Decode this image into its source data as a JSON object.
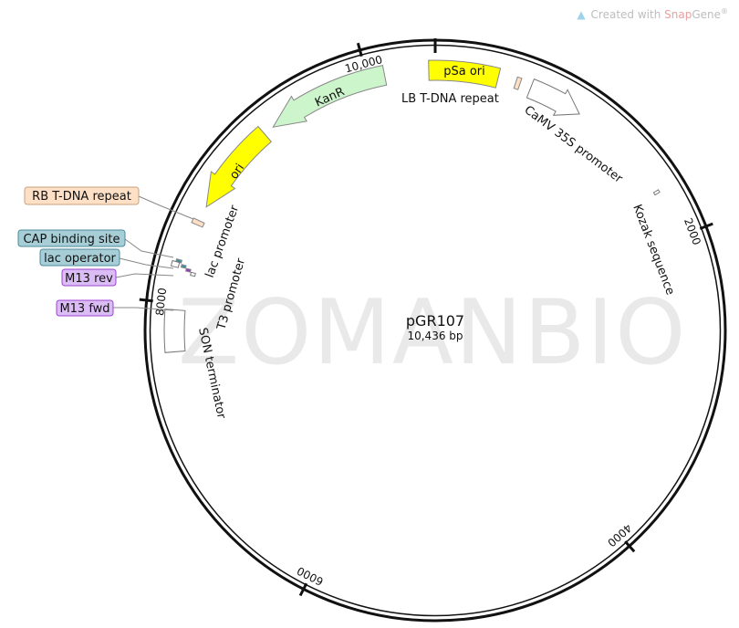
{
  "plasmid": {
    "name": "pGR107",
    "length_label": "10,436 bp",
    "length_bp": 10436
  },
  "watermark": "ZOMANBIO",
  "branding": {
    "prefix": "Created with ",
    "snap": "Snap",
    "gene": "Gene",
    "reg": "®"
  },
  "ticks": [
    {
      "bp": 2000,
      "label": "2000"
    },
    {
      "bp": 4000,
      "label": "4000"
    },
    {
      "bp": 6000,
      "label": "6000"
    },
    {
      "bp": 8000,
      "label": "8000"
    },
    {
      "bp": 10000,
      "label": "10,000"
    }
  ],
  "features": [
    {
      "name": "pSa ori",
      "start": 10395,
      "end": 406,
      "direction": "none",
      "color": "#ffff00"
    },
    {
      "name": "LB T-DNA repeat",
      "start": 522,
      "end": 550,
      "direction": "none",
      "color": "#fde0c5"
    },
    {
      "name": "CaMV 35S promoter",
      "start": 623,
      "end": 977,
      "direction": "forward",
      "color": "#ffffff"
    },
    {
      "name": "Kozak sequence",
      "start": 1675,
      "end": 1685,
      "direction": "none",
      "color": "#ffffff"
    },
    {
      "name": "KanR",
      "start": 9318,
      "end": 10111,
      "direction": "reverse",
      "color": "#ccf5cc"
    },
    {
      "name": "ori",
      "start": 8648,
      "end": 9248,
      "direction": "reverse",
      "color": "#ffff00"
    },
    {
      "name": "RB T-DNA repeat",
      "start": 8520,
      "end": 8550,
      "direction": "none",
      "color": "#fde0c5"
    },
    {
      "name": "CAP binding site",
      "start": 8258,
      "end": 8275,
      "direction": "none",
      "color": "#3d8fa0"
    },
    {
      "name": "lac promoter",
      "start": 8225,
      "end": 8258,
      "direction": "none",
      "color": "#ffffff"
    },
    {
      "name": "lac operator",
      "start": 8232,
      "end": 8248,
      "direction": "none",
      "color": "#3d8fa0"
    },
    {
      "name": "M13 rev",
      "start": 8215,
      "end": 8232,
      "direction": "none",
      "color": "#9933cc"
    },
    {
      "name": "T3 promoter",
      "start": 8195,
      "end": 8215,
      "direction": "none",
      "color": "#ffffff"
    },
    {
      "name": "M13 fwd",
      "start": 7940,
      "end": 7958,
      "direction": "none",
      "color": "#9933cc"
    },
    {
      "name": "SON terminator",
      "start": 7691,
      "end": 7958,
      "direction": "none",
      "color": "#ffffff"
    }
  ],
  "callouts": {
    "rb": {
      "text": "RB T-DNA repeat",
      "fill": "#fde0c5",
      "stroke": "#c9a27a"
    },
    "cap": {
      "text": "CAP binding site",
      "fill": "#a7cdd6",
      "stroke": "#4b8a99"
    },
    "lacop": {
      "text": "lac operator",
      "fill": "#a7cdd6",
      "stroke": "#4b8a99"
    },
    "m13rev": {
      "text": "M13 rev",
      "fill": "#dcbcf5",
      "stroke": "#9b45d0"
    },
    "m13fwd": {
      "text": "M13 fwd",
      "fill": "#dcbcf5",
      "stroke": "#9b45d0"
    }
  },
  "labels": {
    "psa": "pSa ori",
    "lb": "LB T-DNA repeat",
    "camv": "CaMV 35S promoter",
    "kozak": "Kozak sequence",
    "kanr": "KanR",
    "ori": "ori",
    "lacpro": "lac promoter",
    "t3": "T3 promoter",
    "son": "SON terminator"
  }
}
